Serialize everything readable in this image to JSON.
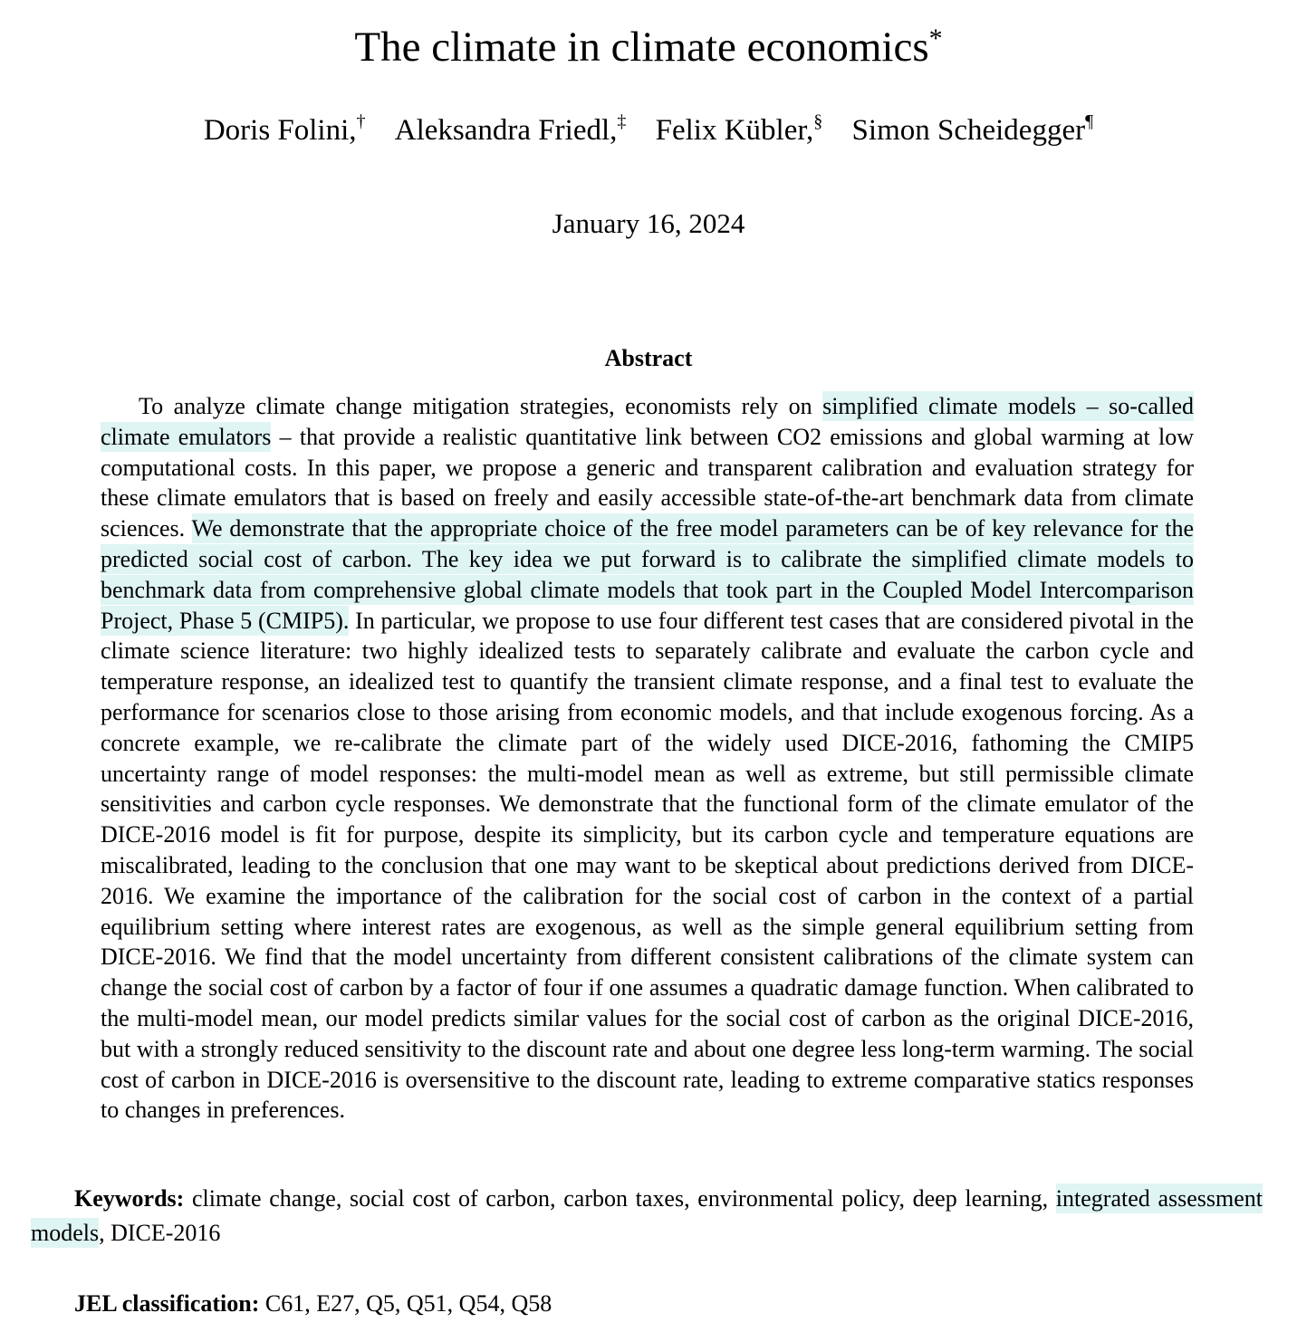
{
  "paper": {
    "title": "The climate in climate economics",
    "title_mark": "*",
    "authors": [
      {
        "name": "Doris Folini,",
        "mark": "†"
      },
      {
        "name": "Aleksandra Friedl,",
        "mark": "‡"
      },
      {
        "name": "Felix Kübler,",
        "mark": "§"
      },
      {
        "name": "Simon Scheidegger",
        "mark": "¶"
      }
    ],
    "date": "January 16, 2024"
  },
  "abstract": {
    "heading": "Abstract",
    "p1": "To analyze climate change mitigation strategies, economists rely on ",
    "hl1": "simplified climate models – so-called climate emulators",
    "p2": " – that provide a realistic quantitative link between CO2 emissions and global warming at low computational costs. In this paper, we propose a generic and transparent calibration and evaluation strategy for these climate emulators that is based on freely and easily accessible state-of-the-art benchmark data from climate sciences. ",
    "hl2": "We demonstrate that the appropriate choice of the free model parameters can be of key relevance for the predicted social cost of carbon. The key idea we put forward is to calibrate the simplified climate models to benchmark data from comprehensive global climate models that took part in the Coupled Model Intercomparison Project, Phase 5 (CMIP5).",
    "p3": " In particular, we propose to use four different test cases that are considered pivotal in the climate science literature: two highly idealized tests to separately calibrate and evaluate the carbon cycle and temperature response, an idealized test to quantify the transient climate response, and a final test to evaluate the performance for scenarios close to those arising from economic models, and that include exogenous forcing. As a concrete example, we re-calibrate the climate part of the widely used DICE-2016, fathoming the CMIP5 uncertainty range of model responses: the multi-model mean as well as extreme, but still permissible climate sensitivities and carbon cycle responses. We demonstrate that the functional form of the climate emulator of the DICE-2016 model is fit for purpose, despite its simplicity, but its carbon cycle and temperature equations are miscalibrated, leading to the conclusion that one may want to be skeptical about predictions derived from DICE-2016. We examine the importance of the calibration for the social cost of carbon in the context of a partial equilibrium setting where interest rates are exogenous, as well as the simple general equilibrium setting from DICE-2016. We find that the model uncertainty from different consistent calibrations of the climate system can change the social cost of carbon by a factor of four if one assumes a quadratic damage function. When calibrated to the multi-model mean, our model predicts similar values for the social cost of carbon as the original DICE-2016, but with a strongly reduced sensitivity to the discount rate and about one degree less long-term warming. The social cost of carbon in DICE-2016 is oversensitive to the discount rate, leading to extreme comparative statics responses to changes in preferences."
  },
  "keywords": {
    "label": "Keywords:",
    "text1": " climate change, social cost of carbon, carbon taxes, environmental policy, deep learning, ",
    "hl": "integrated assessment models",
    "text2": ", DICE-2016"
  },
  "jel": {
    "label": "JEL classification:",
    "text": " C61, E27, Q5, Q51, Q54, Q58"
  },
  "colors": {
    "highlight": "#dff5f3",
    "text": "#000000",
    "background": "#ffffff"
  }
}
